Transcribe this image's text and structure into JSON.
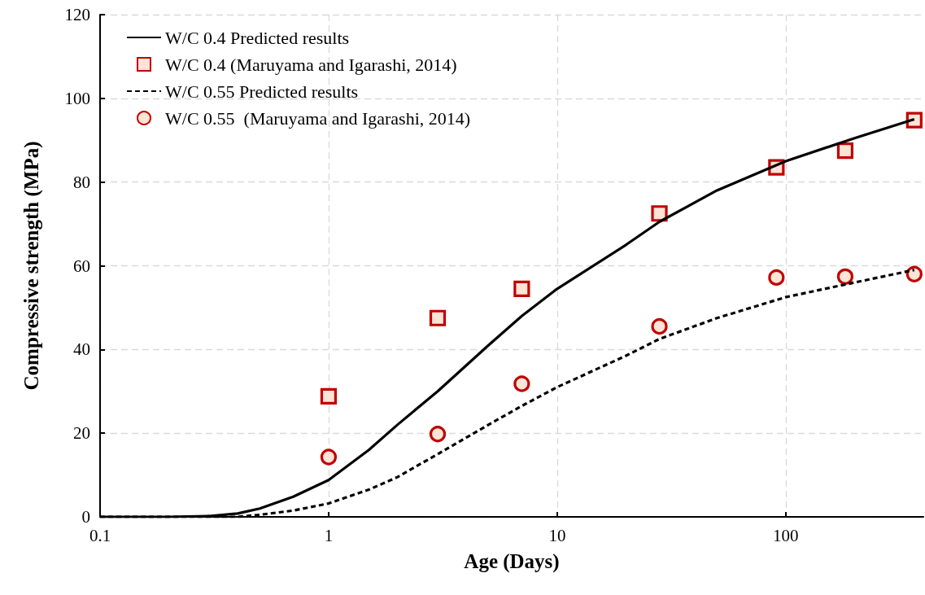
{
  "chart_data": {
    "type": "line",
    "xlabel": "Age (Days)",
    "ylabel": "Compressive strength (MPa)",
    "log": "x",
    "xlim": [
      0.1,
      400
    ],
    "xticks": [
      0.1,
      1,
      10,
      100
    ],
    "ylim": [
      0,
      120
    ],
    "yticks": [
      0,
      20,
      40,
      60,
      80,
      100,
      120
    ],
    "grid": true,
    "legend": "top left",
    "series": [
      {
        "name": "W/C 0.4 Predicted results",
        "type": "line",
        "line_style": "solid",
        "marker": "none",
        "color": "#000000",
        "x": [
          0.1,
          0.2,
          0.3,
          0.4,
          0.5,
          0.7,
          1,
          1.5,
          2,
          3,
          5,
          7,
          10,
          20,
          28,
          50,
          100,
          200,
          365
        ],
        "values": [
          0,
          0,
          0.2,
          0.8,
          2,
          4.8,
          8.8,
          16,
          22,
          30,
          41,
          48,
          54.5,
          65,
          70.5,
          78,
          85,
          90.5,
          95
        ]
      },
      {
        "name": "W/C 0.4 (Maruyama and Igarashi, 2014)",
        "type": "scatter",
        "marker": "square",
        "color": "#c00000",
        "x": [
          1,
          3,
          7,
          28,
          91,
          182,
          365
        ],
        "values": [
          28.8,
          47.5,
          54.5,
          72.5,
          83.5,
          87.5,
          94.8
        ]
      },
      {
        "name": "W/C 0.55 Predicted results",
        "type": "line",
        "line_style": "dashed",
        "marker": "none",
        "color": "#000000",
        "x": [
          0.1,
          0.2,
          0.3,
          0.4,
          0.5,
          0.7,
          1,
          1.5,
          2,
          3,
          5,
          7,
          10,
          20,
          28,
          50,
          100,
          200,
          365
        ],
        "values": [
          0,
          0,
          0,
          0,
          0.5,
          1.5,
          3.2,
          6.5,
          9.5,
          15,
          22,
          26.5,
          31,
          38.5,
          42.5,
          47.5,
          52.5,
          56,
          59
        ]
      },
      {
        "name": "W/C 0.55  (Maruyama and Igarashi, 2014)",
        "type": "scatter",
        "marker": "circle",
        "color": "#c00000",
        "x": [
          1,
          3,
          7,
          28,
          91,
          182,
          365
        ],
        "values": [
          14.3,
          19.8,
          31.8,
          45.5,
          57.2,
          57.4,
          58
        ]
      }
    ]
  }
}
